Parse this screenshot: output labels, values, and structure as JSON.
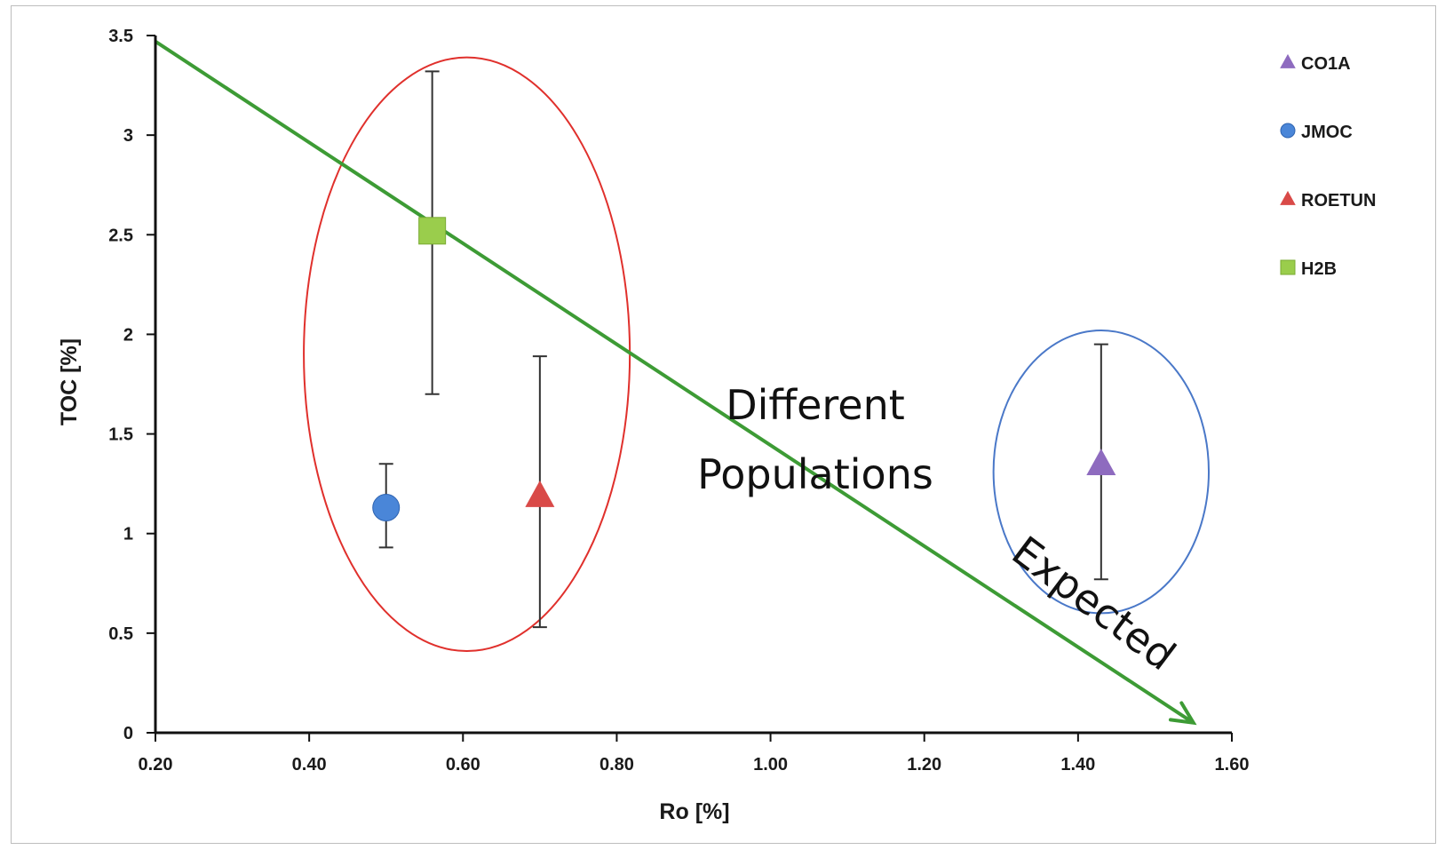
{
  "chart_data": {
    "type": "scatter",
    "xlabel": "Ro [%]",
    "ylabel": "TOC [%]",
    "xlim": [
      0.2,
      1.6
    ],
    "ylim": [
      0,
      3.5
    ],
    "x_ticks": [
      "0.20",
      "0.40",
      "0.60",
      "0.80",
      "1.00",
      "1.20",
      "1.40",
      "1.60"
    ],
    "y_ticks": [
      "0",
      "0.5",
      "1",
      "1.5",
      "2",
      "2.5",
      "3",
      "3.5"
    ],
    "grid": false,
    "legend_position": "top-right",
    "series": [
      {
        "name": "CO1A",
        "marker": "triangle",
        "color": "#8e6bbf",
        "x": 1.43,
        "y": 1.35,
        "err_low": 0.77,
        "err_high": 1.95
      },
      {
        "name": "JMOC",
        "marker": "circle",
        "color": "#4a86d8",
        "x": 0.5,
        "y": 1.13,
        "err_low": 0.93,
        "err_high": 1.35
      },
      {
        "name": "ROETUN",
        "marker": "triangle",
        "color": "#d94a48",
        "x": 0.7,
        "y": 1.19,
        "err_low": 0.53,
        "err_high": 1.89
      },
      {
        "name": "H2B",
        "marker": "square",
        "color": "#9acd4c",
        "x": 0.56,
        "y": 2.52,
        "err_low": 1.7,
        "err_high": 3.32
      }
    ],
    "annotations": [
      {
        "text_line1": "Different",
        "text_line2": "Populations"
      },
      {
        "text": "Expected",
        "trend_from": [
          0.2,
          3.47
        ],
        "trend_to": [
          1.55,
          0.05
        ],
        "color": "#3d9b35"
      }
    ],
    "groupings": [
      {
        "label": "red-ellipse",
        "color": "#e0302c",
        "center": [
          0.605,
          1.9
        ],
        "rx": 0.212,
        "ry": 1.49
      },
      {
        "label": "blue-ellipse",
        "color": "#4a78c8",
        "center": [
          1.43,
          1.31
        ],
        "rx": 0.14,
        "ry": 0.71
      }
    ]
  }
}
